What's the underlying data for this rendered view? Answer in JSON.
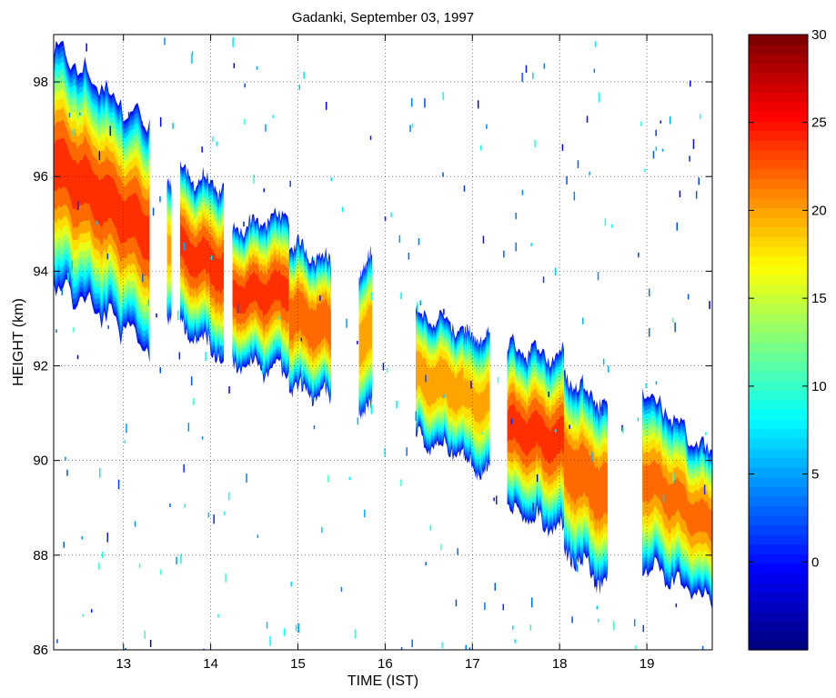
{
  "chart_data": {
    "type": "heatmap",
    "title": "Gadanki, September 03, 1997",
    "xlabel": "TIME (IST)",
    "ylabel": "HEIGHT (km)",
    "xlim": [
      12.2,
      19.75
    ],
    "ylim": [
      86,
      99
    ],
    "x_ticks": [
      13,
      14,
      15,
      16,
      17,
      18,
      19
    ],
    "y_ticks": [
      86,
      88,
      90,
      92,
      94,
      96,
      98
    ],
    "grid": true,
    "colorbar": {
      "colormap": "jet",
      "range": [
        -5,
        30
      ],
      "ticks": [
        0,
        5,
        10,
        15,
        20,
        25,
        30
      ]
    },
    "layer_segments": [
      {
        "x_start": 12.2,
        "x_end": 13.3,
        "center_start": 96.3,
        "center_end": 94.8,
        "half_width_start": 2.4,
        "half_width_end": 2.3,
        "peak": 24
      },
      {
        "x_start": 13.5,
        "x_end": 13.55,
        "center_start": 94.6,
        "center_end": 94.6,
        "half_width_start": 1.4,
        "half_width_end": 1.4,
        "peak": 20
      },
      {
        "x_start": 13.65,
        "x_end": 14.15,
        "center_start": 94.5,
        "center_end": 94.0,
        "half_width_start": 1.6,
        "half_width_end": 1.7,
        "peak": 24
      },
      {
        "x_start": 14.25,
        "x_end": 14.9,
        "center_start": 93.5,
        "center_end": 93.6,
        "half_width_start": 1.4,
        "half_width_end": 1.6,
        "peak": 24
      },
      {
        "x_start": 14.9,
        "x_end": 15.38,
        "center_start": 93.1,
        "center_end": 92.8,
        "half_width_start": 1.5,
        "half_width_end": 1.4,
        "peak": 23
      },
      {
        "x_start": 15.7,
        "x_end": 15.85,
        "center_start": 92.6,
        "center_end": 92.7,
        "half_width_start": 1.4,
        "half_width_end": 1.6,
        "peak": 21
      },
      {
        "x_start": 16.35,
        "x_end": 16.9,
        "center_start": 91.8,
        "center_end": 91.5,
        "half_width_start": 1.3,
        "half_width_end": 1.3,
        "peak": 21
      },
      {
        "x_start": 16.9,
        "x_end": 17.2,
        "center_start": 91.3,
        "center_end": 91.2,
        "half_width_start": 1.3,
        "half_width_end": 1.4,
        "peak": 20
      },
      {
        "x_start": 17.4,
        "x_end": 18.05,
        "center_start": 90.7,
        "center_end": 90.4,
        "half_width_start": 1.7,
        "half_width_end": 1.8,
        "peak": 24
      },
      {
        "x_start": 18.05,
        "x_end": 18.55,
        "center_start": 90.0,
        "center_end": 89.3,
        "half_width_start": 1.8,
        "half_width_end": 1.9,
        "peak": 23
      },
      {
        "x_start": 18.95,
        "x_end": 19.75,
        "center_start": 89.7,
        "center_end": 88.6,
        "half_width_start": 1.8,
        "half_width_end": 1.5,
        "peak": 22
      }
    ]
  }
}
